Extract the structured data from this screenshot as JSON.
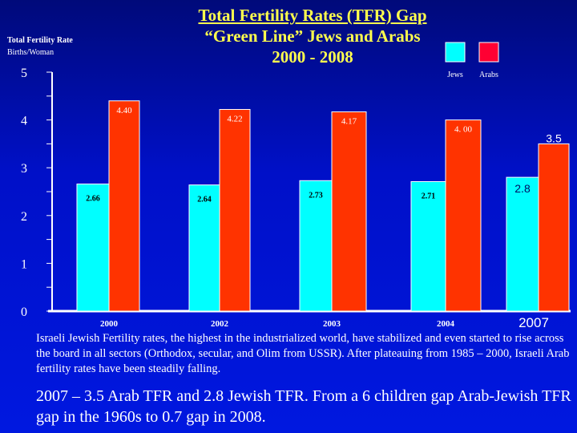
{
  "title": {
    "line1": "Total Fertility Rates (TFR) Gap",
    "line2": "“Green Line” Jews and Arabs",
    "line3": "2000 - 2008"
  },
  "chart_data": {
    "type": "bar",
    "ylabel": "Total Fertility Rate",
    "ylabel_sub": "Births/Woman",
    "categories": [
      "2000",
      "2002",
      "2003",
      "2004",
      "2007"
    ],
    "series": [
      {
        "name": "Jews",
        "color": "#00ffff",
        "values": [
          2.66,
          2.64,
          2.73,
          2.71,
          2.8
        ],
        "labels": [
          "2.66",
          "2.64",
          "2.73",
          "2.71",
          "2.8"
        ]
      },
      {
        "name": "Arabs",
        "color": "#ff3300",
        "values": [
          4.4,
          4.22,
          4.17,
          4.0,
          3.5
        ],
        "labels": [
          "4.40",
          "4.22",
          "4.17",
          "4. 00",
          "3.5"
        ]
      }
    ],
    "yticks": [
      "0",
      "1",
      "2",
      "3",
      "4",
      "5"
    ],
    "ylim": [
      0,
      5
    ],
    "legend_placement": "top-right",
    "legend_colors": {
      "Jews": "#00ffff",
      "Arabs": "#ff0033"
    },
    "grid": false
  },
  "text": {
    "paragraph": "Israeli Jewish Fertility rates, the highest in the industrialized world, have stabilized and even started to rise across the board in all sectors (Orthodox, secular, and Olim from USSR). After plateauing from 1985 – 2000, Israeli Arab fertility rates have been steadily falling.",
    "summary": "2007 – 3.5 Arab TFR and 2.8 Jewish TFR. From a 6 children gap Arab-Jewish TFR gap in the 1960s to 0.7 gap in 2008."
  }
}
